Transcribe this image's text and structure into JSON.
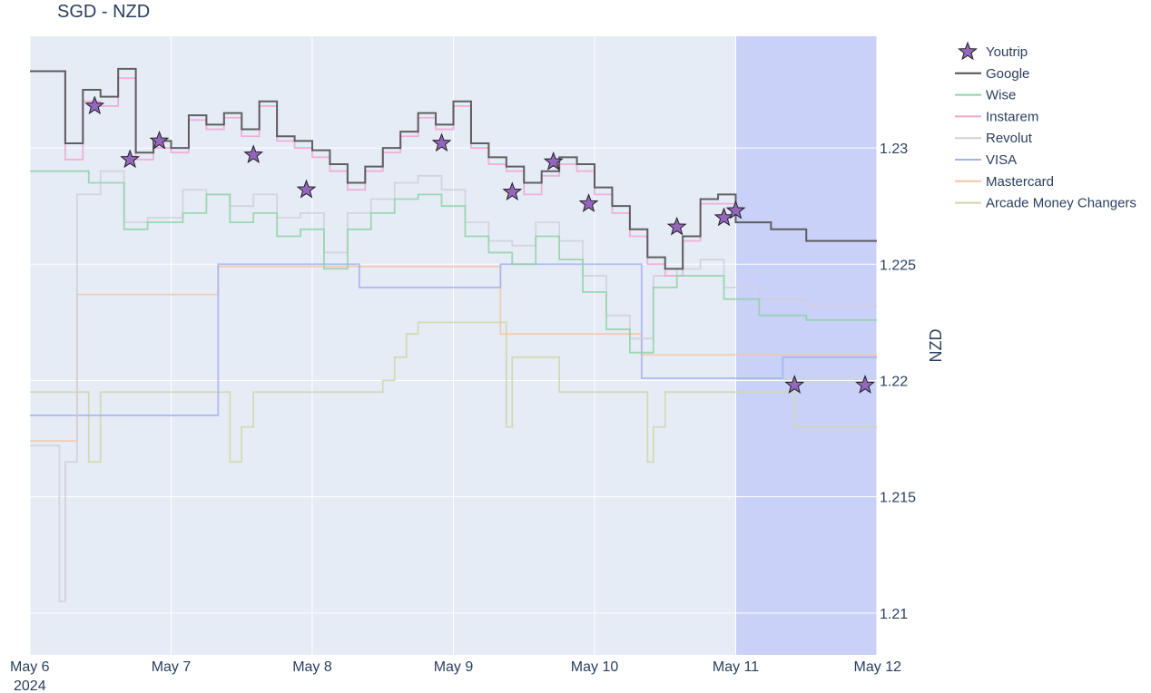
{
  "chart_data": {
    "type": "line",
    "title": "SGD - NZD",
    "xlabel": "",
    "ylabel": "NZD",
    "x_range": [
      "2024-05-06T00:00",
      "2024-05-12T00:00"
    ],
    "ylim": [
      1.2082,
      1.2348
    ],
    "x_ticks": [
      {
        "label": "May 6",
        "sub": "2024",
        "at": "2024-05-06T00:00"
      },
      {
        "label": "May 7",
        "sub": "",
        "at": "2024-05-07T00:00"
      },
      {
        "label": "May 8",
        "sub": "",
        "at": "2024-05-08T00:00"
      },
      {
        "label": "May 9",
        "sub": "",
        "at": "2024-05-09T00:00"
      },
      {
        "label": "May 10",
        "sub": "",
        "at": "2024-05-10T00:00"
      },
      {
        "label": "May 11",
        "sub": "",
        "at": "2024-05-11T00:00"
      },
      {
        "label": "May 12",
        "sub": "",
        "at": "2024-05-12T00:00"
      }
    ],
    "y_ticks": [
      1.21,
      1.215,
      1.22,
      1.225,
      1.23
    ],
    "grid": true,
    "legend_position": "right",
    "shaded_region": {
      "from": "2024-05-11T00:00",
      "to": "2024-05-12T00:00",
      "color": "#c9d1f8"
    },
    "series": [
      {
        "name": "Youtrip",
        "kind": "markers",
        "color": "#9467bd",
        "x": [
          "2024-05-06T11:00",
          "2024-05-06T17:00",
          "2024-05-06T22:00",
          "2024-05-07T14:00",
          "2024-05-07T23:00",
          "2024-05-08T22:00",
          "2024-05-09T10:00",
          "2024-05-09T17:00",
          "2024-05-09T23:00",
          "2024-05-10T14:00",
          "2024-05-10T22:00",
          "2024-05-11T00:00",
          "2024-05-11T10:00",
          "2024-05-11T22:00"
        ],
        "y": [
          1.2318,
          1.2295,
          1.2303,
          1.2297,
          1.2282,
          1.2302,
          1.2281,
          1.2294,
          1.2276,
          1.2266,
          1.227,
          1.2273,
          1.2198,
          1.2198
        ]
      },
      {
        "name": "Google",
        "kind": "step",
        "color": "#505050",
        "x": [
          "2024-05-06T00:00",
          "2024-05-06T03:00",
          "2024-05-06T06:00",
          "2024-05-06T09:00",
          "2024-05-06T12:00",
          "2024-05-06T15:00",
          "2024-05-06T18:00",
          "2024-05-06T21:00",
          "2024-05-07T00:00",
          "2024-05-07T03:00",
          "2024-05-07T06:00",
          "2024-05-07T09:00",
          "2024-05-07T12:00",
          "2024-05-07T15:00",
          "2024-05-07T18:00",
          "2024-05-07T21:00",
          "2024-05-08T00:00",
          "2024-05-08T03:00",
          "2024-05-08T06:00",
          "2024-05-08T09:00",
          "2024-05-08T12:00",
          "2024-05-08T15:00",
          "2024-05-08T18:00",
          "2024-05-08T21:00",
          "2024-05-09T00:00",
          "2024-05-09T03:00",
          "2024-05-09T06:00",
          "2024-05-09T09:00",
          "2024-05-09T12:00",
          "2024-05-09T15:00",
          "2024-05-09T18:00",
          "2024-05-09T21:00",
          "2024-05-10T00:00",
          "2024-05-10T03:00",
          "2024-05-10T06:00",
          "2024-05-10T09:00",
          "2024-05-10T12:00",
          "2024-05-10T15:00",
          "2024-05-10T18:00",
          "2024-05-10T21:00",
          "2024-05-11T00:00",
          "2024-05-11T06:00",
          "2024-05-11T12:00",
          "2024-05-11T18:00",
          "2024-05-12T00:00"
        ],
        "y": [
          1.2333,
          1.2333,
          1.2302,
          1.2325,
          1.2322,
          1.2334,
          1.2298,
          1.2303,
          1.23,
          1.2314,
          1.231,
          1.2315,
          1.2308,
          1.232,
          1.2305,
          1.2303,
          1.2299,
          1.2293,
          1.2285,
          1.2292,
          1.23,
          1.2307,
          1.2315,
          1.231,
          1.232,
          1.2302,
          1.2296,
          1.2292,
          1.2285,
          1.229,
          1.2296,
          1.2293,
          1.2283,
          1.2275,
          1.2265,
          1.2253,
          1.2248,
          1.2262,
          1.2278,
          1.228,
          1.2268,
          1.2265,
          1.226,
          1.226,
          1.226
        ]
      },
      {
        "name": "Wise",
        "kind": "step",
        "color": "#8fd3a5",
        "x": [
          "2024-05-06T00:00",
          "2024-05-06T06:00",
          "2024-05-06T10:00",
          "2024-05-06T16:00",
          "2024-05-06T20:00",
          "2024-05-07T02:00",
          "2024-05-07T06:00",
          "2024-05-07T10:00",
          "2024-05-07T14:00",
          "2024-05-07T18:00",
          "2024-05-07T22:00",
          "2024-05-08T02:00",
          "2024-05-08T06:00",
          "2024-05-08T10:00",
          "2024-05-08T14:00",
          "2024-05-08T18:00",
          "2024-05-08T22:00",
          "2024-05-09T02:00",
          "2024-05-09T06:00",
          "2024-05-09T10:00",
          "2024-05-09T14:00",
          "2024-05-09T18:00",
          "2024-05-09T22:00",
          "2024-05-10T02:00",
          "2024-05-10T06:00",
          "2024-05-10T10:00",
          "2024-05-10T14:00",
          "2024-05-10T18:00",
          "2024-05-10T22:00",
          "2024-05-11T04:00",
          "2024-05-11T12:00",
          "2024-05-12T00:00"
        ],
        "y": [
          1.229,
          1.229,
          1.2285,
          1.2265,
          1.2268,
          1.2272,
          1.228,
          1.2268,
          1.2272,
          1.2262,
          1.2265,
          1.2248,
          1.2265,
          1.2272,
          1.2278,
          1.228,
          1.2275,
          1.2262,
          1.2255,
          1.225,
          1.2262,
          1.2252,
          1.2238,
          1.2222,
          1.2212,
          1.224,
          1.2245,
          1.2245,
          1.2235,
          1.2228,
          1.2226,
          1.2226
        ]
      },
      {
        "name": "Instarem",
        "kind": "step",
        "color": "#f2a5d3",
        "x": [
          "2024-05-06T00:00",
          "2024-05-06T03:00",
          "2024-05-06T06:00",
          "2024-05-06T09:00",
          "2024-05-06T12:00",
          "2024-05-06T15:00",
          "2024-05-06T18:00",
          "2024-05-06T21:00",
          "2024-05-07T00:00",
          "2024-05-07T03:00",
          "2024-05-07T06:00",
          "2024-05-07T09:00",
          "2024-05-07T12:00",
          "2024-05-07T15:00",
          "2024-05-07T18:00",
          "2024-05-07T21:00",
          "2024-05-08T00:00",
          "2024-05-08T03:00",
          "2024-05-08T06:00",
          "2024-05-08T09:00",
          "2024-05-08T12:00",
          "2024-05-08T15:00",
          "2024-05-08T18:00",
          "2024-05-08T21:00",
          "2024-05-09T00:00",
          "2024-05-09T03:00",
          "2024-05-09T06:00",
          "2024-05-09T09:00",
          "2024-05-09T12:00",
          "2024-05-09T15:00",
          "2024-05-09T18:00",
          "2024-05-09T21:00",
          "2024-05-10T00:00",
          "2024-05-10T03:00",
          "2024-05-10T06:00",
          "2024-05-10T09:00",
          "2024-05-10T12:00",
          "2024-05-10T15:00",
          "2024-05-10T18:00",
          "2024-05-10T21:00",
          "2024-05-11T00:00"
        ],
        "y": [
          1.2333,
          1.2333,
          1.2295,
          1.232,
          1.2318,
          1.233,
          1.2295,
          1.23,
          1.2298,
          1.2312,
          1.2308,
          1.2313,
          1.2305,
          1.2318,
          1.2303,
          1.23,
          1.2296,
          1.229,
          1.2282,
          1.229,
          1.2298,
          1.2305,
          1.2313,
          1.2308,
          1.2318,
          1.23,
          1.2293,
          1.229,
          1.228,
          1.2288,
          1.2293,
          1.229,
          1.228,
          1.2272,
          1.2262,
          1.225,
          1.2245,
          1.226,
          1.2276,
          1.2276,
          1.2275
        ]
      },
      {
        "name": "Revolut",
        "kind": "step",
        "color": "#d0d0d8",
        "x": [
          "2024-05-06T00:00",
          "2024-05-06T04:00",
          "2024-05-06T05:00",
          "2024-05-06T06:00",
          "2024-05-06T08:00",
          "2024-05-06T12:00",
          "2024-05-06T16:00",
          "2024-05-06T20:00",
          "2024-05-07T02:00",
          "2024-05-07T06:00",
          "2024-05-07T10:00",
          "2024-05-07T14:00",
          "2024-05-07T18:00",
          "2024-05-07T22:00",
          "2024-05-08T02:00",
          "2024-05-08T06:00",
          "2024-05-08T10:00",
          "2024-05-08T14:00",
          "2024-05-08T18:00",
          "2024-05-08T22:00",
          "2024-05-09T02:00",
          "2024-05-09T06:00",
          "2024-05-09T10:00",
          "2024-05-09T14:00",
          "2024-05-09T18:00",
          "2024-05-09T22:00",
          "2024-05-10T02:00",
          "2024-05-10T06:00",
          "2024-05-10T10:00",
          "2024-05-10T14:00",
          "2024-05-10T18:00",
          "2024-05-10T22:00",
          "2024-05-11T04:00",
          "2024-05-11T12:00",
          "2024-05-12T00:00"
        ],
        "y": [
          1.2172,
          1.2172,
          1.2105,
          1.2165,
          1.228,
          1.229,
          1.2268,
          1.227,
          1.2282,
          1.228,
          1.2275,
          1.228,
          1.227,
          1.2272,
          1.2255,
          1.2272,
          1.2278,
          1.2285,
          1.2288,
          1.2282,
          1.2268,
          1.226,
          1.2258,
          1.2268,
          1.226,
          1.2245,
          1.2228,
          1.2218,
          1.2245,
          1.2248,
          1.2252,
          1.224,
          1.2235,
          1.2232,
          1.2232
        ]
      },
      {
        "name": "VISA",
        "kind": "step",
        "color": "#a5b2f0",
        "x": [
          "2024-05-06T00:00",
          "2024-05-07T08:00",
          "2024-05-08T08:00",
          "2024-05-09T08:00",
          "2024-05-10T08:00",
          "2024-05-11T08:00",
          "2024-05-12T00:00"
        ],
        "y": [
          1.2185,
          1.225,
          1.224,
          1.225,
          1.2201,
          1.221,
          1.221
        ]
      },
      {
        "name": "Mastercard",
        "kind": "step",
        "color": "#f6c6a6",
        "x": [
          "2024-05-06T00:00",
          "2024-05-06T08:00",
          "2024-05-07T08:00",
          "2024-05-09T08:00",
          "2024-05-10T08:00",
          "2024-05-12T00:00"
        ],
        "y": [
          1.2174,
          1.2237,
          1.2249,
          1.222,
          1.2211,
          1.2211
        ]
      },
      {
        "name": "Arcade Money Changers",
        "kind": "step",
        "color": "#cfd8a9",
        "x": [
          "2024-05-06T00:00",
          "2024-05-06T10:00",
          "2024-05-06T12:00",
          "2024-05-07T10:00",
          "2024-05-07T12:00",
          "2024-05-07T14:00",
          "2024-05-08T12:00",
          "2024-05-08T14:00",
          "2024-05-08T16:00",
          "2024-05-08T18:00",
          "2024-05-09T06:00",
          "2024-05-09T09:00",
          "2024-05-09T10:00",
          "2024-05-09T12:00",
          "2024-05-09T18:00",
          "2024-05-10T09:00",
          "2024-05-10T10:00",
          "2024-05-10T12:00",
          "2024-05-11T10:00",
          "2024-05-12T00:00"
        ],
        "y": [
          1.2195,
          1.2165,
          1.2195,
          1.2165,
          1.218,
          1.2195,
          1.22,
          1.221,
          1.222,
          1.2225,
          1.2225,
          1.218,
          1.221,
          1.221,
          1.2195,
          1.2165,
          1.218,
          1.2195,
          1.218,
          1.218
        ]
      }
    ]
  }
}
